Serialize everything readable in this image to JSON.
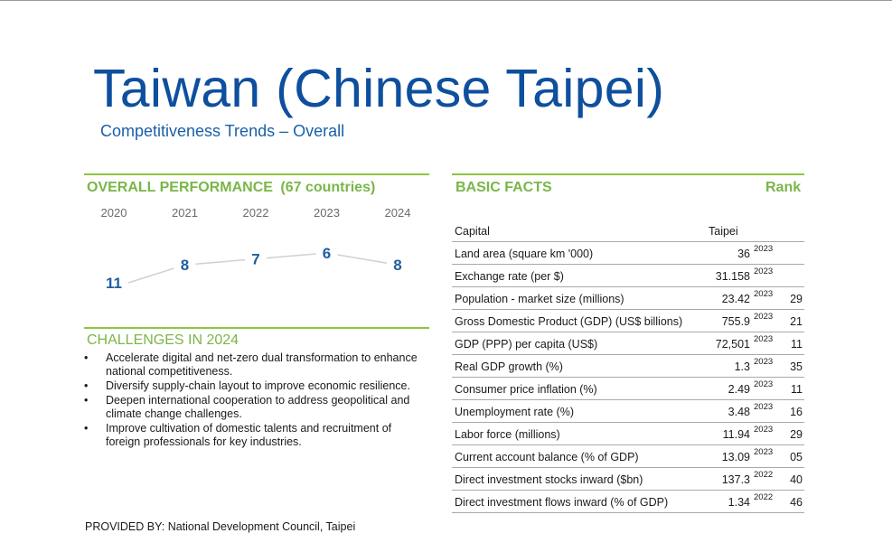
{
  "title": "Taiwan (Chinese Taipei)",
  "subtitle": "Competitiveness Trends – Overall",
  "overall_performance": {
    "heading": "OVERALL PERFORMANCE",
    "countries": "(67 countries)"
  },
  "chart_data": {
    "type": "line",
    "categories": [
      "2020",
      "2021",
      "2022",
      "2023",
      "2024"
    ],
    "values": [
      11,
      8,
      7,
      6,
      8
    ],
    "labels": [
      "11",
      "8",
      "7",
      "6",
      "8"
    ],
    "reversed_axis": true,
    "colors": {
      "line": "#d0d0d0",
      "label": "#1f5fa0"
    }
  },
  "challenges": {
    "heading": "CHALLENGES IN 2024",
    "bullet": "•",
    "items": [
      "Accelerate digital and net-zero dual transformation to enhance national competitiveness.",
      "Diversify supply-chain layout to improve economic resilience.",
      "Deepen international cooperation to address geopolitical and climate change challenges.",
      "Improve cultivation of domestic talents and recruitment of foreign professionals for key industries."
    ]
  },
  "basic_facts": {
    "heading": "BASIC FACTS",
    "rank_heading": "Rank",
    "capital_label": "Capital",
    "capital_value": "Taipei",
    "rows": [
      {
        "label": "Land area (square km '000)",
        "value": "36",
        "year": "2023",
        "rank": ""
      },
      {
        "label": "Exchange rate (per $)",
        "value": "31.158",
        "year": "2023",
        "rank": ""
      },
      {
        "label": "Population - market size (millions)",
        "value": "23.42",
        "year": "2023",
        "rank": "29"
      },
      {
        "label": "Gross Domestic Product (GDP) (US$ billions)",
        "value": "755.9",
        "year": "2023",
        "rank": "21"
      },
      {
        "label": "GDP (PPP) per capita (US$)",
        "value": "72,501",
        "year": "2023",
        "rank": "11"
      },
      {
        "label": "Real GDP growth (%)",
        "value": "1.3",
        "year": "2023",
        "rank": "35"
      },
      {
        "label": "Consumer price inflation (%)",
        "value": "2.49",
        "year": "2023",
        "rank": "11"
      },
      {
        "label": "Unemployment rate (%)",
        "value": "3.48",
        "year": "2023",
        "rank": "16"
      },
      {
        "label": "Labor force (millions)",
        "value": "11.94",
        "year": "2023",
        "rank": "29"
      },
      {
        "label": "Current account balance (% of GDP)",
        "value": "13.09",
        "year": "2023",
        "rank": "05"
      },
      {
        "label": "Direct investment stocks inward ($bn)",
        "value": "137.3",
        "year": "2022",
        "rank": "40"
      },
      {
        "label": "Direct investment flows inward (% of GDP)",
        "value": "1.34",
        "year": "2022",
        "rank": "46"
      }
    ]
  },
  "provided_by": "PROVIDED BY: National Development Council, Taipei",
  "colors": {
    "title": "#0e4f9e",
    "accent_green": "#8cc63f",
    "heading_green": "#7ab648"
  }
}
